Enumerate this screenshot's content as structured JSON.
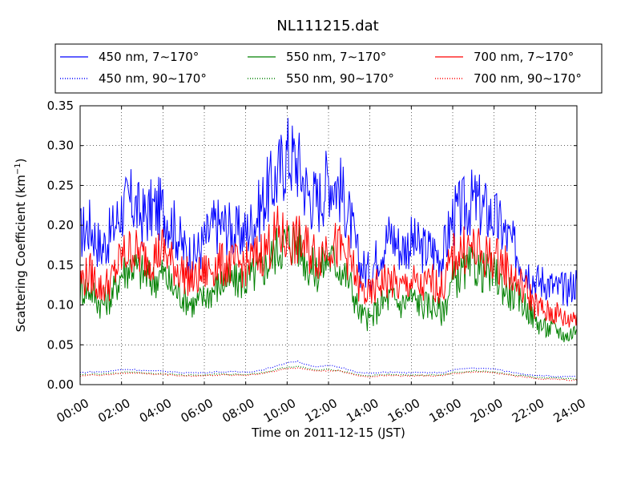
{
  "chart_data": {
    "type": "line",
    "title": "NL111215.dat",
    "xlabel": "Time on 2011-12-15 (JST)",
    "ylabel": "Scattering Coefficient (km",
    "ylabel_sup": "−1",
    "ylabel_tail": ")",
    "x_unit": "hours",
    "xlim": [
      0,
      24
    ],
    "ylim": [
      0,
      0.35
    ],
    "grid": true,
    "legend_position": "top",
    "x_ticks": [
      {
        "value": 0,
        "label": "00:00"
      },
      {
        "value": 2,
        "label": "02:00"
      },
      {
        "value": 4,
        "label": "04:00"
      },
      {
        "value": 6,
        "label": "06:00"
      },
      {
        "value": 8,
        "label": "08:00"
      },
      {
        "value": 10,
        "label": "10:00"
      },
      {
        "value": 12,
        "label": "12:00"
      },
      {
        "value": 14,
        "label": "14:00"
      },
      {
        "value": 16,
        "label": "16:00"
      },
      {
        "value": 18,
        "label": "18:00"
      },
      {
        "value": 20,
        "label": "20:00"
      },
      {
        "value": 22,
        "label": "22:00"
      },
      {
        "value": 24,
        "label": "24:00"
      }
    ],
    "y_ticks": [
      {
        "value": 0.0,
        "label": "0.00"
      },
      {
        "value": 0.05,
        "label": "0.05"
      },
      {
        "value": 0.1,
        "label": "0.10"
      },
      {
        "value": 0.15,
        "label": "0.15"
      },
      {
        "value": 0.2,
        "label": "0.20"
      },
      {
        "value": 0.25,
        "label": "0.25"
      },
      {
        "value": 0.3,
        "label": "0.30"
      },
      {
        "value": 0.35,
        "label": "0.35"
      }
    ],
    "x": [
      0,
      0.5,
      1,
      1.5,
      2,
      2.5,
      3,
      3.5,
      4,
      4.5,
      5,
      5.5,
      6,
      6.5,
      7,
      7.5,
      8,
      8.5,
      9,
      9.5,
      10,
      10.5,
      11,
      11.5,
      12,
      12.5,
      13,
      13.5,
      14,
      14.5,
      15,
      15.5,
      16,
      16.5,
      17,
      17.5,
      18,
      18.5,
      19,
      19.5,
      20,
      20.5,
      21,
      21.5,
      22,
      22.5,
      23,
      23.5,
      24
    ],
    "series": [
      {
        "name": "450 nm, 7∼170°",
        "color": "#0000ff",
        "style": "solid",
        "values": [
          0.19,
          0.2,
          0.17,
          0.19,
          0.22,
          0.23,
          0.21,
          0.22,
          0.22,
          0.2,
          0.17,
          0.16,
          0.18,
          0.2,
          0.2,
          0.19,
          0.19,
          0.21,
          0.24,
          0.26,
          0.29,
          0.28,
          0.24,
          0.23,
          0.26,
          0.25,
          0.21,
          0.15,
          0.14,
          0.17,
          0.19,
          0.17,
          0.18,
          0.17,
          0.17,
          0.16,
          0.21,
          0.22,
          0.23,
          0.22,
          0.21,
          0.19,
          0.17,
          0.15,
          0.13,
          0.13,
          0.12,
          0.12,
          0.13
        ]
      },
      {
        "name": "550 nm, 7∼170°",
        "color": "#008000",
        "style": "solid",
        "values": [
          0.12,
          0.12,
          0.1,
          0.11,
          0.14,
          0.15,
          0.14,
          0.13,
          0.14,
          0.12,
          0.11,
          0.1,
          0.11,
          0.12,
          0.13,
          0.13,
          0.13,
          0.14,
          0.15,
          0.17,
          0.18,
          0.18,
          0.15,
          0.14,
          0.16,
          0.15,
          0.13,
          0.09,
          0.08,
          0.1,
          0.11,
          0.1,
          0.11,
          0.1,
          0.1,
          0.09,
          0.13,
          0.14,
          0.15,
          0.14,
          0.14,
          0.12,
          0.11,
          0.1,
          0.08,
          0.07,
          0.07,
          0.06,
          0.07
        ]
      },
      {
        "name": "700 nm, 7∼170°",
        "color": "#ff0000",
        "style": "solid",
        "values": [
          0.13,
          0.14,
          0.12,
          0.13,
          0.16,
          0.17,
          0.16,
          0.16,
          0.17,
          0.15,
          0.14,
          0.13,
          0.14,
          0.15,
          0.15,
          0.15,
          0.15,
          0.16,
          0.17,
          0.19,
          0.18,
          0.18,
          0.17,
          0.16,
          0.18,
          0.17,
          0.16,
          0.12,
          0.11,
          0.13,
          0.13,
          0.12,
          0.13,
          0.12,
          0.13,
          0.12,
          0.16,
          0.17,
          0.17,
          0.16,
          0.16,
          0.15,
          0.13,
          0.12,
          0.1,
          0.09,
          0.09,
          0.08,
          0.09
        ]
      },
      {
        "name": "450 nm, 90∼170°",
        "color": "#0000ff",
        "style": "dotted",
        "values": [
          0.015,
          0.016,
          0.016,
          0.017,
          0.019,
          0.019,
          0.018,
          0.017,
          0.017,
          0.016,
          0.015,
          0.015,
          0.015,
          0.016,
          0.016,
          0.016,
          0.016,
          0.017,
          0.02,
          0.023,
          0.028,
          0.029,
          0.025,
          0.022,
          0.024,
          0.022,
          0.019,
          0.015,
          0.014,
          0.015,
          0.016,
          0.015,
          0.015,
          0.015,
          0.015,
          0.015,
          0.018,
          0.02,
          0.021,
          0.02,
          0.02,
          0.017,
          0.015,
          0.013,
          0.012,
          0.011,
          0.01,
          0.01,
          0.01
        ]
      },
      {
        "name": "550 nm, 90∼170°",
        "color": "#008000",
        "style": "dotted",
        "values": [
          0.012,
          0.013,
          0.013,
          0.014,
          0.015,
          0.016,
          0.015,
          0.014,
          0.014,
          0.013,
          0.012,
          0.012,
          0.012,
          0.013,
          0.013,
          0.013,
          0.013,
          0.014,
          0.016,
          0.019,
          0.022,
          0.023,
          0.02,
          0.018,
          0.019,
          0.018,
          0.015,
          0.012,
          0.011,
          0.012,
          0.013,
          0.012,
          0.012,
          0.012,
          0.012,
          0.012,
          0.015,
          0.016,
          0.017,
          0.017,
          0.016,
          0.014,
          0.012,
          0.011,
          0.009,
          0.008,
          0.008,
          0.007,
          0.007
        ]
      },
      {
        "name": "700 nm, 90∼170°",
        "color": "#ff0000",
        "style": "dotted",
        "values": [
          0.011,
          0.012,
          0.012,
          0.013,
          0.014,
          0.015,
          0.014,
          0.013,
          0.013,
          0.012,
          0.011,
          0.011,
          0.011,
          0.012,
          0.012,
          0.012,
          0.012,
          0.013,
          0.015,
          0.018,
          0.02,
          0.021,
          0.019,
          0.017,
          0.018,
          0.017,
          0.014,
          0.011,
          0.01,
          0.011,
          0.012,
          0.011,
          0.011,
          0.011,
          0.011,
          0.011,
          0.014,
          0.015,
          0.016,
          0.016,
          0.015,
          0.013,
          0.011,
          0.01,
          0.008,
          0.007,
          0.007,
          0.006,
          0.006
        ]
      }
    ]
  }
}
